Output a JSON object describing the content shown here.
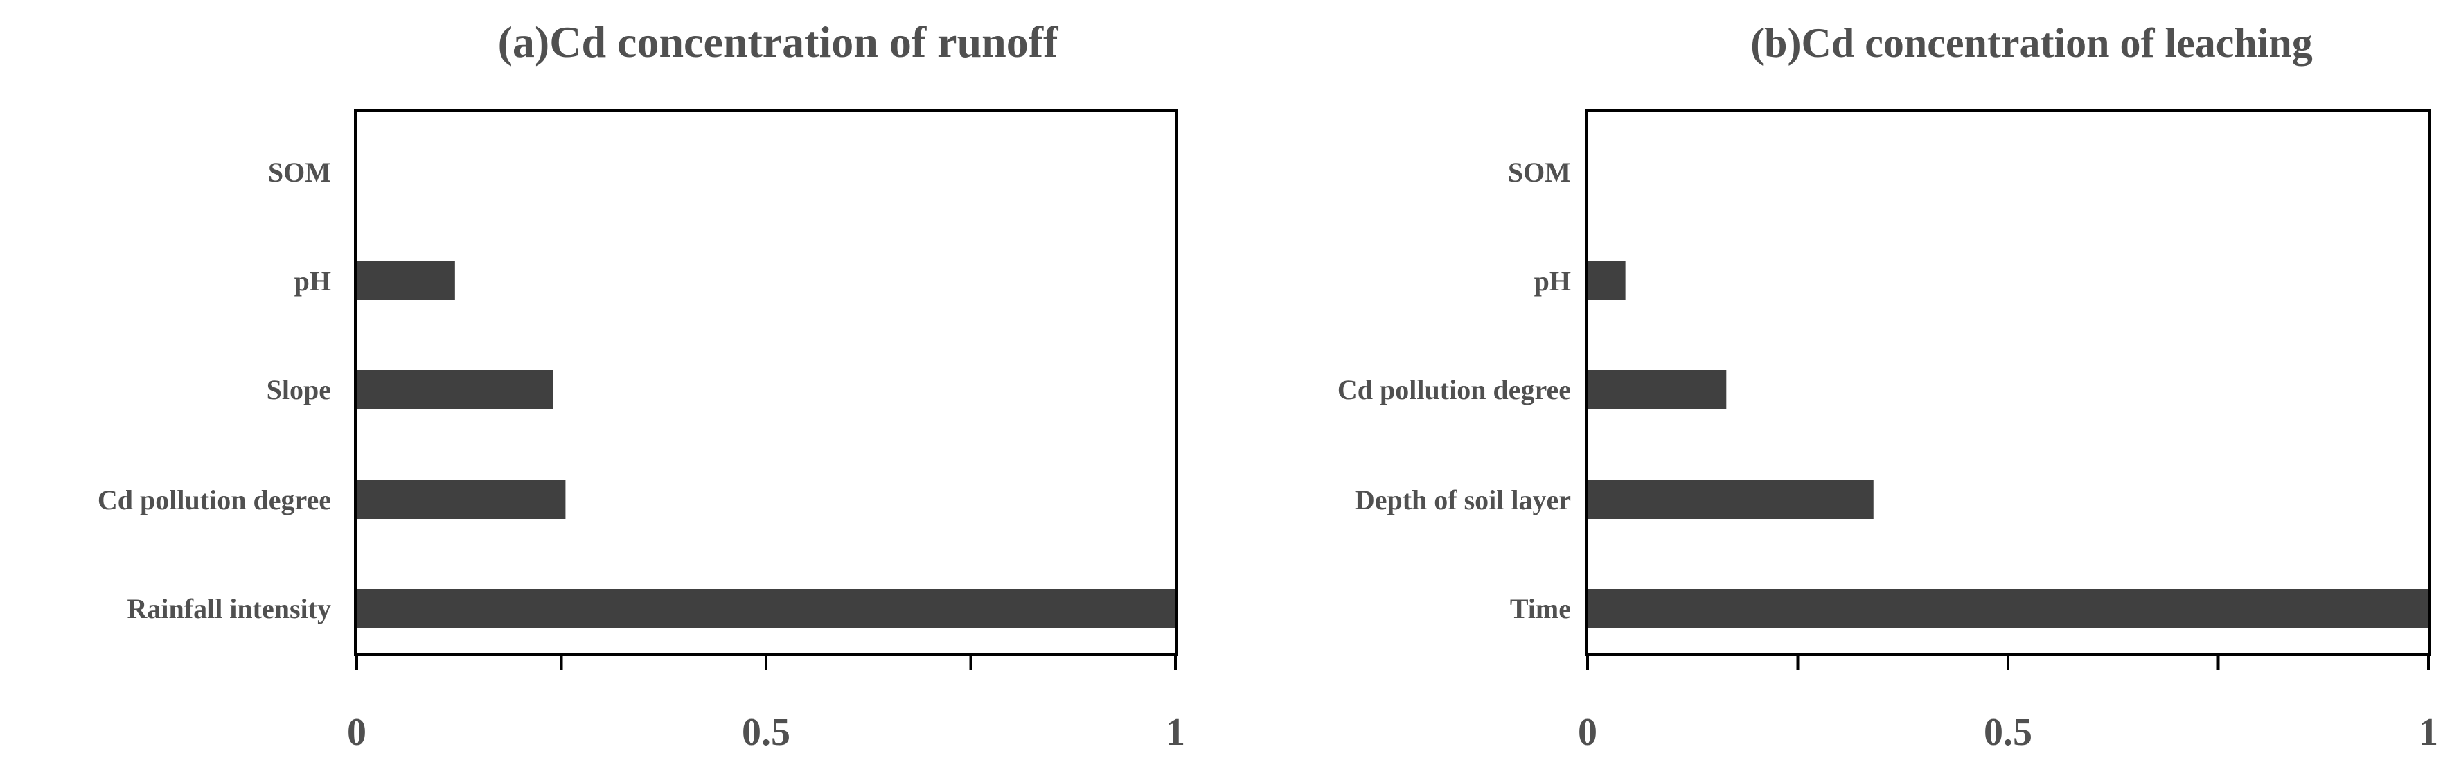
{
  "chart_data": [
    {
      "type": "bar",
      "orientation": "horizontal",
      "title": "(a)Cd concentration of runoff",
      "categories": [
        "SOM",
        "pH",
        "Slope",
        "Cd pollution degree",
        "Rainfall intensity"
      ],
      "values": [
        0,
        0.12,
        0.24,
        0.255,
        1.0
      ],
      "xlim": [
        0,
        1
      ],
      "xticks": [
        {
          "v": 0,
          "label": "0"
        },
        {
          "v": 0.5,
          "label": "0.5"
        },
        {
          "v": 1,
          "label": "1"
        }
      ],
      "minor_ticks": [
        0.25,
        0.75
      ],
      "grid": false,
      "bar_color": "#404040"
    },
    {
      "type": "bar",
      "orientation": "horizontal",
      "title": "(b)Cd concentration of leaching",
      "categories": [
        "SOM",
        "pH",
        "Cd pollution degree",
        "Depth of soil layer",
        "Time"
      ],
      "values": [
        0,
        0.045,
        0.165,
        0.34,
        1.0
      ],
      "xlim": [
        0,
        1
      ],
      "xticks": [
        {
          "v": 0,
          "label": "0"
        },
        {
          "v": 0.5,
          "label": "0.5"
        },
        {
          "v": 1,
          "label": "1"
        }
      ],
      "minor_ticks": [
        0.25,
        0.75
      ],
      "grid": false,
      "bar_color": "#404040"
    }
  ]
}
